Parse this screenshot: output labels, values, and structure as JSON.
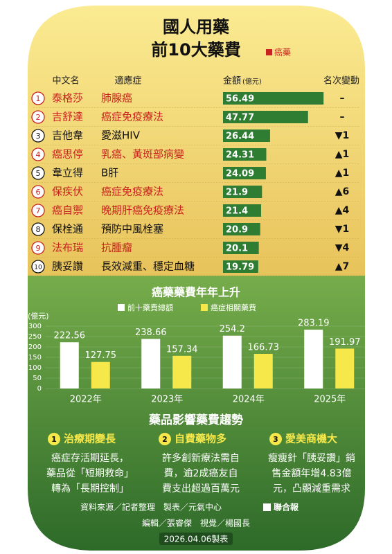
{
  "header": {
    "title_line1": "國人用藥",
    "title_line2": "前10大藥費",
    "legend": "癌藥"
  },
  "table": {
    "headers": {
      "name": "中文名",
      "indication": "適應症",
      "amount": "金額",
      "amount_unit": "(億元)",
      "change": "名次變動"
    },
    "rows": [
      {
        "rank": 1,
        "name": "泰格莎",
        "indication": "肺腺癌",
        "amount": 56.49,
        "change": "–",
        "cancer": true
      },
      {
        "rank": 2,
        "name": "吉舒達",
        "indication": "癌症免疫療法",
        "amount": 47.77,
        "change": "–",
        "cancer": true
      },
      {
        "rank": 3,
        "name": "吉他韋",
        "indication": "愛滋HIV",
        "amount": 26.44,
        "change": "▼1",
        "cancer": false
      },
      {
        "rank": 4,
        "name": "癌思停",
        "indication": "乳癌、黃斑部病變",
        "amount": 24.31,
        "change": "▲1",
        "cancer": true
      },
      {
        "rank": 5,
        "name": "韋立得",
        "indication": "B肝",
        "amount": 24.09,
        "change": "▲1",
        "cancer": false
      },
      {
        "rank": 6,
        "name": "保疾伏",
        "indication": "癌症免疫療法",
        "amount": 21.9,
        "change": "▲6",
        "cancer": true
      },
      {
        "rank": 7,
        "name": "癌自禦",
        "indication": "晚期肝癌免疫療法",
        "amount": 21.4,
        "change": "▲4",
        "cancer": true
      },
      {
        "rank": 8,
        "name": "保栓通",
        "indication": "預防中風栓塞",
        "amount": 20.9,
        "change": "▼1",
        "cancer": false
      },
      {
        "rank": 9,
        "name": "法布瑞",
        "indication": "抗腫瘤",
        "amount": 20.1,
        "change": "▼4",
        "cancer": true
      },
      {
        "rank": 10,
        "name": "胰妥讚",
        "indication": "長效減重、穩定血糖",
        "amount": 19.79,
        "change": "▲7",
        "cancer": false
      }
    ]
  },
  "chart_data": {
    "type": "bar",
    "title": "癌藥藥費年年上升",
    "y_label": "(億元)",
    "categories": [
      "2022年",
      "2023年",
      "2024年",
      "2025年"
    ],
    "series": [
      {
        "name": "前十藥費總額",
        "color": "#ffffff",
        "values": [
          222.56,
          238.66,
          254.2,
          283.19
        ]
      },
      {
        "name": "癌症相關藥費",
        "color": "#f6e84a",
        "values": [
          127.75,
          157.34,
          166.73,
          191.97
        ]
      }
    ],
    "ylim": [
      0,
      300
    ],
    "yticks": [
      0,
      50,
      100,
      150,
      200,
      250,
      300
    ]
  },
  "trends": {
    "title": "藥品影響藥費趨勢",
    "items": [
      {
        "number": 1,
        "heading": "治療期變長",
        "lines": [
          "癌症存活期延長，",
          "藥品從「短期救命」",
          "轉為「長期控制」"
        ]
      },
      {
        "number": 2,
        "heading": "自費藥物多",
        "lines": [
          "許多創新療法需自",
          "費，逾2成癌友自",
          "費支出超過百萬元"
        ]
      },
      {
        "number": 3,
        "heading": "愛美商機大",
        "lines": [
          "瘦瘦針「胰妥讚」銷",
          "售金額年增4.83億",
          "元，凸顯減重需求"
        ]
      }
    ]
  },
  "footer": {
    "source": "資料來源／記者整理　製表／元氣中心",
    "logo": "聯合報",
    "credits": "編輯／張睿傑　視覺／楊國長",
    "date": "2026.04.06製表"
  }
}
